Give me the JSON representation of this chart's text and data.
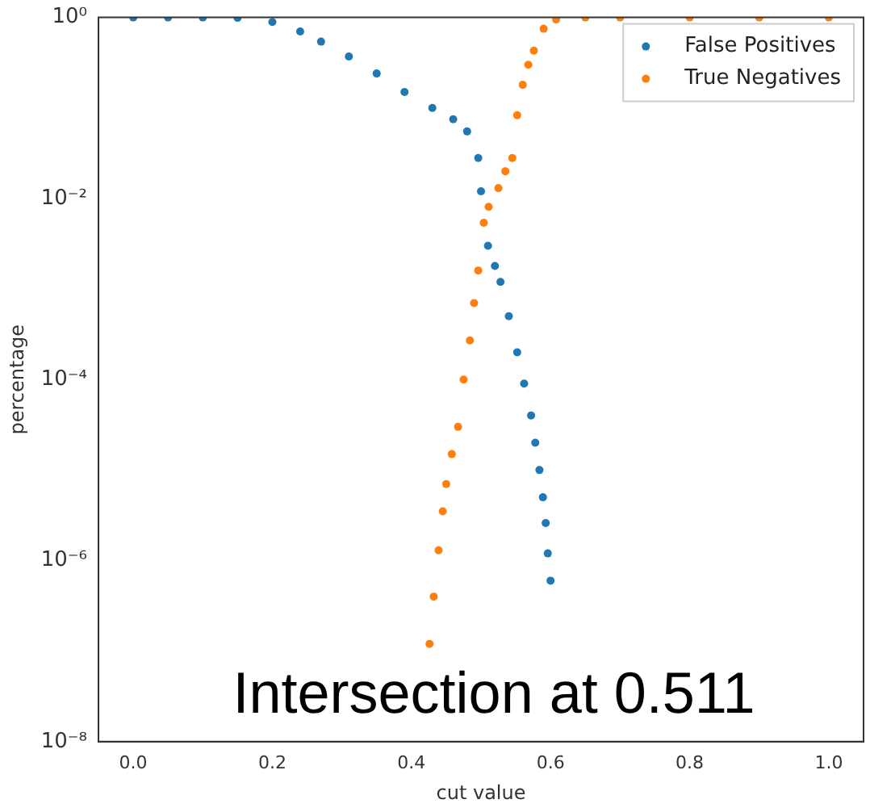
{
  "chart_data": {
    "type": "scatter",
    "xlabel": "cut value",
    "ylabel": "percentage",
    "log": "y",
    "grid": false,
    "legend": "top right",
    "marker": "circle",
    "xlim": [
      -0.05,
      1.05
    ],
    "xticks": [
      {
        "value": 0,
        "label": "0.0"
      },
      0.2,
      0.4,
      0.6,
      0.8,
      {
        "value": 1,
        "label": "1.0"
      }
    ],
    "ylim": [
      1e-08,
      1
    ],
    "yticks": [
      {
        "value": 1,
        "label": "10⁰"
      },
      {
        "value": 0.01,
        "label": "10⁻²"
      },
      {
        "value": 0.0001,
        "label": "10⁻⁴"
      },
      {
        "value": 1e-06,
        "label": "10⁻⁶"
      },
      {
        "value": 1e-08,
        "label": "10⁻⁸"
      }
    ],
    "annotations": [
      "Intersection at 0.511"
    ],
    "series": [
      {
        "name": "False Positives",
        "color": "#1f77b4",
        "x": [
          0,
          0.05,
          0.1,
          0.15,
          0.2,
          0.24,
          0.27,
          0.31,
          0.35,
          0.39,
          0.43,
          0.46,
          0.48,
          0.496,
          0.5,
          0.51,
          0.52,
          0.528,
          0.54,
          0.552,
          0.562,
          0.572,
          0.578,
          0.584,
          0.589,
          0.593,
          0.596,
          0.6
        ],
        "values": [
          1,
          1,
          1,
          0.99,
          0.89,
          0.7,
          0.54,
          0.37,
          0.24,
          0.15,
          0.1,
          0.075,
          0.055,
          0.028,
          0.012,
          0.003,
          0.0018,
          0.0012,
          0.0005,
          0.0002,
          9e-05,
          4e-05,
          2e-05,
          1e-05,
          5e-06,
          2.6e-06,
          1.2e-06,
          6e-07
        ]
      },
      {
        "name": "True Negatives",
        "color": "#ff7f0e",
        "x": [
          0.426,
          0.432,
          0.439,
          0.445,
          0.45,
          0.458,
          0.467,
          0.475,
          0.484,
          0.49,
          0.496,
          0.504,
          0.511,
          0.525,
          0.535,
          0.545,
          0.552,
          0.56,
          0.568,
          0.576,
          0.59,
          0.608,
          0.65,
          0.7,
          0.8,
          0.9,
          1.0
        ],
        "values": [
          1.2e-07,
          4e-07,
          1.3e-06,
          3.5e-06,
          7e-06,
          1.5e-05,
          3e-05,
          0.0001,
          0.00027,
          0.0007,
          0.0016,
          0.0054,
          0.0081,
          0.013,
          0.02,
          0.028,
          0.083,
          0.18,
          0.3,
          0.43,
          0.75,
          0.95,
          1,
          1,
          1,
          1,
          1
        ]
      }
    ]
  }
}
